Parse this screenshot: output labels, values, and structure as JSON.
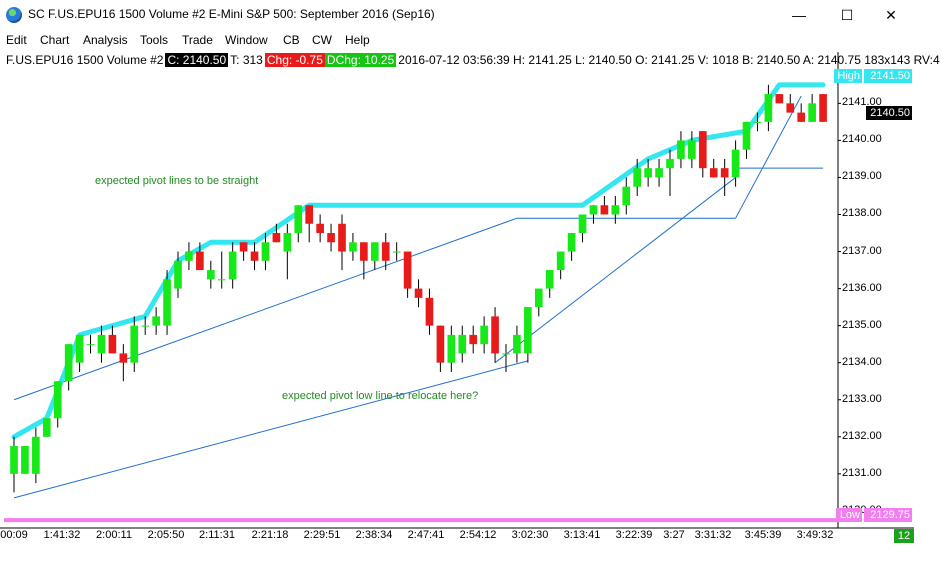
{
  "window": {
    "title": "SC F.US.EPU16  1500 Volume  #2  E-Mini S&P 500: September 2016 (Sep16)",
    "minimize_glyph": "—",
    "maximize_glyph": "☐",
    "close_glyph": "✕"
  },
  "menu": [
    "Edit",
    "Chart",
    "Analysis",
    "Tools",
    "Trade",
    "Window",
    "CB",
    "CW",
    "Help"
  ],
  "info": {
    "symbol": "F.US.EPU16  1500 Volume  #2",
    "close": "C: 2140.50",
    "trades": "T: 313",
    "chg": "Chg: -0.75",
    "dchg": "DChg: 10.25",
    "details": "2016-07-12 03:56:39 H: 2141.25 L: 2140.50 O: 2141.25 V: 1018 B: 2140.50 A: 2140.75 183x143 RV:4"
  },
  "price_tags": {
    "high_label": "High",
    "high_value": "2141.50",
    "last_value": "2140.50",
    "low_label": "Low",
    "low_value": "2129.75"
  },
  "annotations": {
    "pivot_lines": "expected pivot lines to be straight",
    "pivot_low": "expected pivot low line to relocate here?"
  },
  "corner_badge": "12",
  "colors": {
    "up": "#17e817",
    "down": "#e81b1b",
    "zigzag": "#33e6f0",
    "low_line": "#f27ef2",
    "trend": "#1f6fcf"
  },
  "chart_data": {
    "type": "candlestick",
    "ylim": [
      2129.7,
      2141.9
    ],
    "y_ticks": [
      "2141.00",
      "2140.00",
      "2139.00",
      "2138.00",
      "2137.00",
      "2136.00",
      "2135.00",
      "2134.00",
      "2133.00",
      "2132.00",
      "2131.00",
      "2130.00"
    ],
    "x_ticks": [
      "00:09",
      "1:41:32",
      "2:00:11",
      "2:05:50",
      "2:11:31",
      "2:21:18",
      "2:29:51",
      "2:38:34",
      "2:47:41",
      "2:54:12",
      "3:02:30",
      "3:13:41",
      "3:22:39",
      "3:27",
      "3:31:32",
      "3:45:39",
      "3:49:32"
    ],
    "candles": [
      {
        "o": 2131.0,
        "h": 2132.0,
        "l": 2130.5,
        "c": 2131.75
      },
      {
        "o": 2131.0,
        "h": 2131.75,
        "l": 2131.0,
        "c": 2131.75
      },
      {
        "o": 2131.0,
        "h": 2132.25,
        "l": 2130.75,
        "c": 2132.0
      },
      {
        "o": 2132.0,
        "h": 2132.5,
        "l": 2132.0,
        "c": 2132.5
      },
      {
        "o": 2132.5,
        "h": 2133.5,
        "l": 2132.25,
        "c": 2133.5
      },
      {
        "o": 2133.5,
        "h": 2134.5,
        "l": 2133.25,
        "c": 2134.5
      },
      {
        "o": 2134.0,
        "h": 2134.75,
        "l": 2133.75,
        "c": 2134.75
      },
      {
        "o": 2134.5,
        "h": 2134.75,
        "l": 2134.25,
        "c": 2134.5
      },
      {
        "o": 2134.25,
        "h": 2135.0,
        "l": 2134.0,
        "c": 2134.75
      },
      {
        "o": 2134.75,
        "h": 2135.0,
        "l": 2134.25,
        "c": 2134.25
      },
      {
        "o": 2134.25,
        "h": 2134.5,
        "l": 2133.5,
        "c": 2134.0
      },
      {
        "o": 2134.0,
        "h": 2135.25,
        "l": 2133.75,
        "c": 2135.0
      },
      {
        "o": 2135.0,
        "h": 2135.25,
        "l": 2134.75,
        "c": 2135.0
      },
      {
        "o": 2135.0,
        "h": 2135.5,
        "l": 2134.75,
        "c": 2135.25
      },
      {
        "o": 2135.0,
        "h": 2136.5,
        "l": 2134.75,
        "c": 2136.25
      },
      {
        "o": 2136.0,
        "h": 2137.0,
        "l": 2135.75,
        "c": 2136.75
      },
      {
        "o": 2136.75,
        "h": 2137.25,
        "l": 2136.5,
        "c": 2137.0
      },
      {
        "o": 2137.0,
        "h": 2137.25,
        "l": 2136.5,
        "c": 2136.5
      },
      {
        "o": 2136.25,
        "h": 2136.75,
        "l": 2136.0,
        "c": 2136.5
      },
      {
        "o": 2136.25,
        "h": 2137.0,
        "l": 2136.0,
        "c": 2136.25
      },
      {
        "o": 2136.25,
        "h": 2137.25,
        "l": 2136.0,
        "c": 2137.0
      },
      {
        "o": 2137.25,
        "h": 2137.25,
        "l": 2136.75,
        "c": 2137.0
      },
      {
        "o": 2137.0,
        "h": 2137.25,
        "l": 2136.5,
        "c": 2136.75
      },
      {
        "o": 2136.75,
        "h": 2137.5,
        "l": 2136.5,
        "c": 2137.25
      },
      {
        "o": 2137.5,
        "h": 2137.75,
        "l": 2137.25,
        "c": 2137.25
      },
      {
        "o": 2137.0,
        "h": 2137.75,
        "l": 2136.25,
        "c": 2137.5
      },
      {
        "o": 2137.5,
        "h": 2138.25,
        "l": 2137.25,
        "c": 2138.25
      },
      {
        "o": 2138.25,
        "h": 2138.25,
        "l": 2137.25,
        "c": 2137.75
      },
      {
        "o": 2137.75,
        "h": 2138.0,
        "l": 2137.25,
        "c": 2137.5
      },
      {
        "o": 2137.5,
        "h": 2137.75,
        "l": 2137.0,
        "c": 2137.25
      },
      {
        "o": 2137.75,
        "h": 2138.0,
        "l": 2136.5,
        "c": 2137.0
      },
      {
        "o": 2137.0,
        "h": 2137.5,
        "l": 2136.75,
        "c": 2137.25
      },
      {
        "o": 2137.25,
        "h": 2137.25,
        "l": 2136.25,
        "c": 2136.75
      },
      {
        "o": 2136.75,
        "h": 2137.25,
        "l": 2136.5,
        "c": 2137.25
      },
      {
        "o": 2137.25,
        "h": 2137.5,
        "l": 2136.5,
        "c": 2136.75
      },
      {
        "o": 2137.0,
        "h": 2137.25,
        "l": 2136.75,
        "c": 2137.0
      },
      {
        "o": 2137.0,
        "h": 2137.0,
        "l": 2135.75,
        "c": 2136.0
      },
      {
        "o": 2136.0,
        "h": 2136.25,
        "l": 2135.5,
        "c": 2135.75
      },
      {
        "o": 2135.75,
        "h": 2136.0,
        "l": 2134.75,
        "c": 2135.0
      },
      {
        "o": 2135.0,
        "h": 2135.0,
        "l": 2133.75,
        "c": 2134.0
      },
      {
        "o": 2134.0,
        "h": 2135.0,
        "l": 2133.75,
        "c": 2134.75
      },
      {
        "o": 2134.25,
        "h": 2135.0,
        "l": 2134.0,
        "c": 2134.75
      },
      {
        "o": 2134.75,
        "h": 2135.0,
        "l": 2134.25,
        "c": 2134.5
      },
      {
        "o": 2134.5,
        "h": 2135.25,
        "l": 2134.25,
        "c": 2135.0
      },
      {
        "o": 2135.25,
        "h": 2135.5,
        "l": 2134.0,
        "c": 2134.25
      },
      {
        "o": 2134.25,
        "h": 2134.5,
        "l": 2133.75,
        "c": 2134.25
      },
      {
        "o": 2134.25,
        "h": 2135.0,
        "l": 2134.0,
        "c": 2134.75
      },
      {
        "o": 2134.25,
        "h": 2135.5,
        "l": 2134.0,
        "c": 2135.5
      },
      {
        "o": 2135.5,
        "h": 2136.0,
        "l": 2135.25,
        "c": 2136.0
      },
      {
        "o": 2136.0,
        "h": 2136.5,
        "l": 2135.75,
        "c": 2136.5
      },
      {
        "o": 2136.5,
        "h": 2137.0,
        "l": 2136.25,
        "c": 2137.0
      },
      {
        "o": 2137.0,
        "h": 2137.5,
        "l": 2136.75,
        "c": 2137.5
      },
      {
        "o": 2137.5,
        "h": 2138.0,
        "l": 2137.25,
        "c": 2138.0
      },
      {
        "o": 2138.0,
        "h": 2138.25,
        "l": 2137.75,
        "c": 2138.25
      },
      {
        "o": 2138.25,
        "h": 2138.5,
        "l": 2138.0,
        "c": 2138.0
      },
      {
        "o": 2138.0,
        "h": 2138.5,
        "l": 2137.75,
        "c": 2138.25
      },
      {
        "o": 2138.25,
        "h": 2139.0,
        "l": 2138.0,
        "c": 2138.75
      },
      {
        "o": 2138.75,
        "h": 2139.5,
        "l": 2138.5,
        "c": 2139.25
      },
      {
        "o": 2139.0,
        "h": 2139.5,
        "l": 2138.75,
        "c": 2139.25
      },
      {
        "o": 2139.0,
        "h": 2139.5,
        "l": 2138.75,
        "c": 2139.25
      },
      {
        "o": 2139.25,
        "h": 2139.75,
        "l": 2138.5,
        "c": 2139.5
      },
      {
        "o": 2139.5,
        "h": 2140.25,
        "l": 2139.25,
        "c": 2140.0
      },
      {
        "o": 2139.5,
        "h": 2140.25,
        "l": 2139.25,
        "c": 2140.0
      },
      {
        "o": 2140.25,
        "h": 2140.25,
        "l": 2139.0,
        "c": 2139.25
      },
      {
        "o": 2139.25,
        "h": 2139.5,
        "l": 2139.0,
        "c": 2139.0
      },
      {
        "o": 2139.25,
        "h": 2139.5,
        "l": 2138.5,
        "c": 2139.0
      },
      {
        "o": 2139.0,
        "h": 2140.0,
        "l": 2138.75,
        "c": 2139.75
      },
      {
        "o": 2139.75,
        "h": 2140.5,
        "l": 2139.5,
        "c": 2140.5
      },
      {
        "o": 2140.5,
        "h": 2140.75,
        "l": 2140.25,
        "c": 2140.5
      },
      {
        "o": 2140.5,
        "h": 2141.5,
        "l": 2140.25,
        "c": 2141.25
      },
      {
        "o": 2141.25,
        "h": 2141.25,
        "l": 2141.0,
        "c": 2141.0
      },
      {
        "o": 2141.0,
        "h": 2141.25,
        "l": 2140.75,
        "c": 2140.75
      },
      {
        "o": 2140.75,
        "h": 2141.0,
        "l": 2140.5,
        "c": 2140.5
      },
      {
        "o": 2140.5,
        "h": 2141.25,
        "l": 2140.5,
        "c": 2141.0
      },
      {
        "o": 2141.25,
        "h": 2141.25,
        "l": 2140.5,
        "c": 2140.5
      }
    ],
    "zigzag": [
      [
        0,
        2132.0
      ],
      [
        3,
        2132.5
      ],
      [
        6,
        2134.75
      ],
      [
        9,
        2135.0
      ],
      [
        12,
        2135.25
      ],
      [
        15,
        2136.75
      ],
      [
        18,
        2137.25
      ],
      [
        22,
        2137.25
      ],
      [
        27,
        2138.25
      ],
      [
        52,
        2138.25
      ],
      [
        58,
        2139.5
      ],
      [
        62,
        2140.0
      ],
      [
        67,
        2140.25
      ],
      [
        70,
        2141.5
      ],
      [
        74,
        2141.5
      ]
    ],
    "low_line": 2129.75
  }
}
